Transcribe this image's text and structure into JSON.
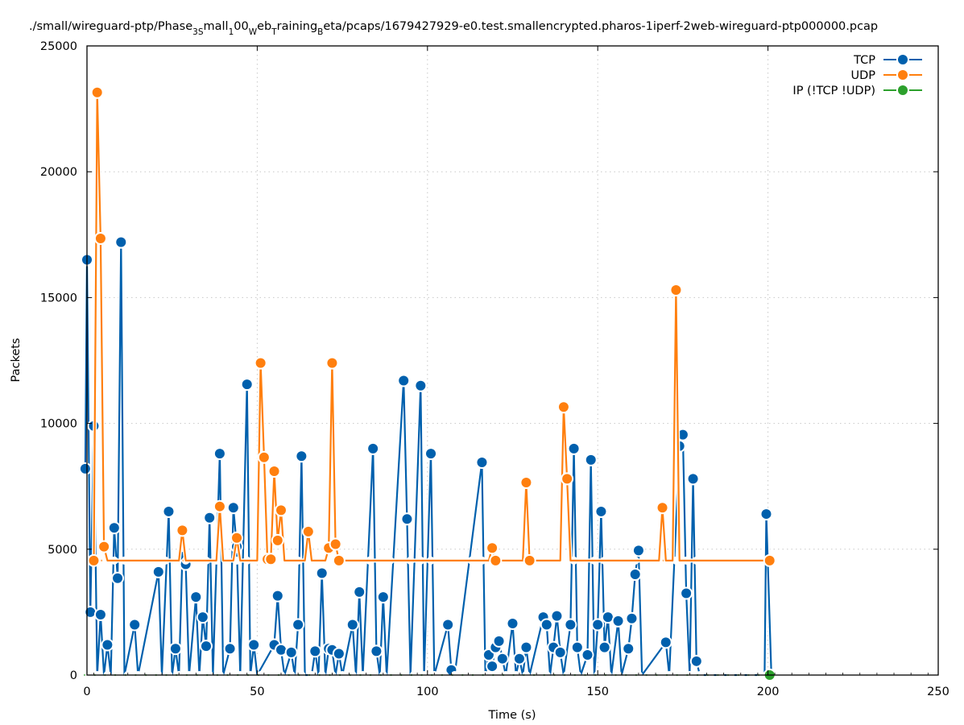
{
  "chart_data": {
    "type": "line",
    "title": "./small/wireguard-ptp/Phase_3Small_100_Web_Training_Beta/pcaps/1679427929-e0.test.smallencrypted.pharos-1iperf-2web-wireguard-ptp000000.pcap",
    "title_parts": [
      {
        "t": "./small/wireguard-ptp/Phase",
        "sub": false
      },
      {
        "t": "3S",
        "sub": true
      },
      {
        "t": "mall",
        "sub": false
      },
      {
        "t": "1",
        "sub": true
      },
      {
        "t": "00",
        "sub": false
      },
      {
        "t": "W",
        "sub": true
      },
      {
        "t": "eb",
        "sub": false
      },
      {
        "t": "T",
        "sub": true
      },
      {
        "t": "raining",
        "sub": false
      },
      {
        "t": "B",
        "sub": true
      },
      {
        "t": "eta/pcaps/1679427929-e0.test.smallencrypted.pharos-1iperf-2web-wireguard-ptp000000.pcap",
        "sub": false
      }
    ],
    "xlabel": "Time (s)",
    "ylabel": "Packets",
    "xlim": [
      0,
      250
    ],
    "ylim": [
      0,
      25000
    ],
    "xticks": [
      0,
      50,
      100,
      150,
      200,
      250
    ],
    "yticks": [
      0,
      5000,
      10000,
      15000,
      20000,
      25000
    ],
    "grid": true,
    "legend_position": "top-right",
    "series": [
      {
        "name": "TCP",
        "color": "#0060ad",
        "points": [
          [
            -0.5,
            8200
          ],
          [
            0,
            16500
          ],
          [
            1,
            2500
          ],
          [
            2,
            9900
          ],
          [
            3,
            0
          ],
          [
            4,
            2400
          ],
          [
            5,
            0
          ],
          [
            6,
            1200
          ],
          [
            7,
            0
          ],
          [
            8,
            5850
          ],
          [
            9,
            3850
          ],
          [
            10,
            17200
          ],
          [
            11,
            0
          ],
          [
            14,
            2000
          ],
          [
            15,
            0
          ],
          [
            21,
            4100
          ],
          [
            22,
            0
          ],
          [
            24,
            6500
          ],
          [
            25,
            0
          ],
          [
            26,
            1050
          ],
          [
            27,
            0
          ],
          [
            28,
            4700
          ],
          [
            29,
            4400
          ],
          [
            30,
            0
          ],
          [
            32,
            3100
          ],
          [
            33,
            0
          ],
          [
            34,
            2300
          ],
          [
            35,
            1150
          ],
          [
            36,
            6250
          ],
          [
            37,
            0
          ],
          [
            39,
            8800
          ],
          [
            40,
            0
          ],
          [
            42,
            1050
          ],
          [
            43,
            6650
          ],
          [
            44,
            5100
          ],
          [
            45,
            0
          ],
          [
            47,
            11550
          ],
          [
            48,
            0
          ],
          [
            49,
            1200
          ],
          [
            50,
            0
          ],
          [
            55,
            1200
          ],
          [
            56,
            3150
          ],
          [
            57,
            1000
          ],
          [
            58,
            0
          ],
          [
            60,
            900
          ],
          [
            61,
            0
          ],
          [
            62,
            2000
          ],
          [
            63,
            8700
          ],
          [
            64,
            0
          ],
          [
            66,
            0
          ],
          [
            67,
            950
          ],
          [
            68,
            0
          ],
          [
            69,
            4050
          ],
          [
            70,
            0
          ],
          [
            71,
            1050
          ],
          [
            72,
            1000
          ],
          [
            73,
            0
          ],
          [
            74,
            850
          ],
          [
            75,
            0
          ],
          [
            78,
            2000
          ],
          [
            79,
            0
          ],
          [
            80,
            3300
          ],
          [
            81,
            0
          ],
          [
            84,
            9000
          ],
          [
            85,
            950
          ],
          [
            86,
            0
          ],
          [
            87,
            3100
          ],
          [
            88,
            0
          ],
          [
            93,
            11700
          ],
          [
            94,
            6200
          ],
          [
            95,
            0
          ],
          [
            98,
            11500
          ],
          [
            99,
            0
          ],
          [
            101,
            8800
          ],
          [
            102,
            0
          ],
          [
            106,
            2000
          ],
          [
            107,
            200
          ],
          [
            108,
            0
          ],
          [
            116,
            8450
          ],
          [
            117,
            0
          ],
          [
            118,
            800
          ],
          [
            119,
            350
          ],
          [
            120,
            1100
          ],
          [
            121,
            1350
          ],
          [
            122,
            650
          ],
          [
            123,
            0
          ],
          [
            125,
            2050
          ],
          [
            126,
            0
          ],
          [
            127,
            650
          ],
          [
            128,
            0
          ],
          [
            129,
            1100
          ],
          [
            130,
            0
          ],
          [
            134,
            2300
          ],
          [
            135,
            2000
          ],
          [
            136,
            0
          ],
          [
            137,
            1100
          ],
          [
            138,
            2350
          ],
          [
            139,
            900
          ],
          [
            140,
            0
          ],
          [
            142,
            2000
          ],
          [
            143,
            9000
          ],
          [
            144,
            1100
          ],
          [
            145,
            0
          ],
          [
            147,
            800
          ],
          [
            148,
            8550
          ],
          [
            149,
            0
          ],
          [
            150,
            2000
          ],
          [
            151,
            6500
          ],
          [
            152,
            1100
          ],
          [
            153,
            2300
          ],
          [
            154,
            0
          ],
          [
            156,
            2150
          ],
          [
            157,
            0
          ],
          [
            159,
            1050
          ],
          [
            160,
            2250
          ],
          [
            161,
            4000
          ],
          [
            162,
            4950
          ],
          [
            163,
            0
          ],
          [
            170,
            1300
          ],
          [
            171,
            0
          ],
          [
            174,
            9100
          ],
          [
            175,
            9550
          ],
          [
            176,
            3250
          ],
          [
            177,
            0
          ],
          [
            178,
            7800
          ],
          [
            179,
            550
          ],
          [
            180,
            0
          ],
          [
            199,
            0
          ],
          [
            199.5,
            6400
          ],
          [
            201,
            0
          ]
        ]
      },
      {
        "name": "UDP",
        "color": "#ff7f0e",
        "points": [
          [
            2,
            4550
          ],
          [
            3,
            23150
          ],
          [
            4,
            17350
          ],
          [
            5,
            5100
          ],
          [
            6,
            4550
          ],
          [
            27,
            4550
          ],
          [
            28,
            5750
          ],
          [
            29,
            4550
          ],
          [
            38,
            4550
          ],
          [
            39,
            6700
          ],
          [
            40,
            4550
          ],
          [
            43,
            4550
          ],
          [
            44,
            5450
          ],
          [
            45,
            4550
          ],
          [
            50,
            4550
          ],
          [
            51,
            12400
          ],
          [
            52,
            8650
          ],
          [
            53,
            4600
          ],
          [
            54,
            4600
          ],
          [
            55,
            8100
          ],
          [
            56,
            5350
          ],
          [
            57,
            6550
          ],
          [
            58,
            4550
          ],
          [
            64,
            4550
          ],
          [
            65,
            5700
          ],
          [
            66,
            4550
          ],
          [
            70,
            4550
          ],
          [
            71,
            5050
          ],
          [
            72,
            12400
          ],
          [
            73,
            5200
          ],
          [
            74,
            4550
          ],
          [
            118,
            4550
          ],
          [
            119,
            5050
          ],
          [
            120,
            4550
          ],
          [
            128,
            4550
          ],
          [
            129,
            7650
          ],
          [
            130,
            4550
          ],
          [
            139,
            4550
          ],
          [
            140,
            10650
          ],
          [
            141,
            7800
          ],
          [
            142,
            4550
          ],
          [
            168,
            4550
          ],
          [
            169,
            6650
          ],
          [
            170,
            4550
          ],
          [
            172,
            4550
          ],
          [
            173,
            15300
          ],
          [
            174,
            4550
          ],
          [
            200.5,
            4550
          ]
        ],
        "baseline_value": 4550,
        "baseline_range": [
          2,
          200
        ]
      },
      {
        "name": "IP (!TCP  !UDP)",
        "color": "#2ca02c",
        "points": [
          [
            200.5,
            0
          ]
        ],
        "baseline_value": 0,
        "baseline_range": [
          0,
          200
        ]
      }
    ]
  }
}
